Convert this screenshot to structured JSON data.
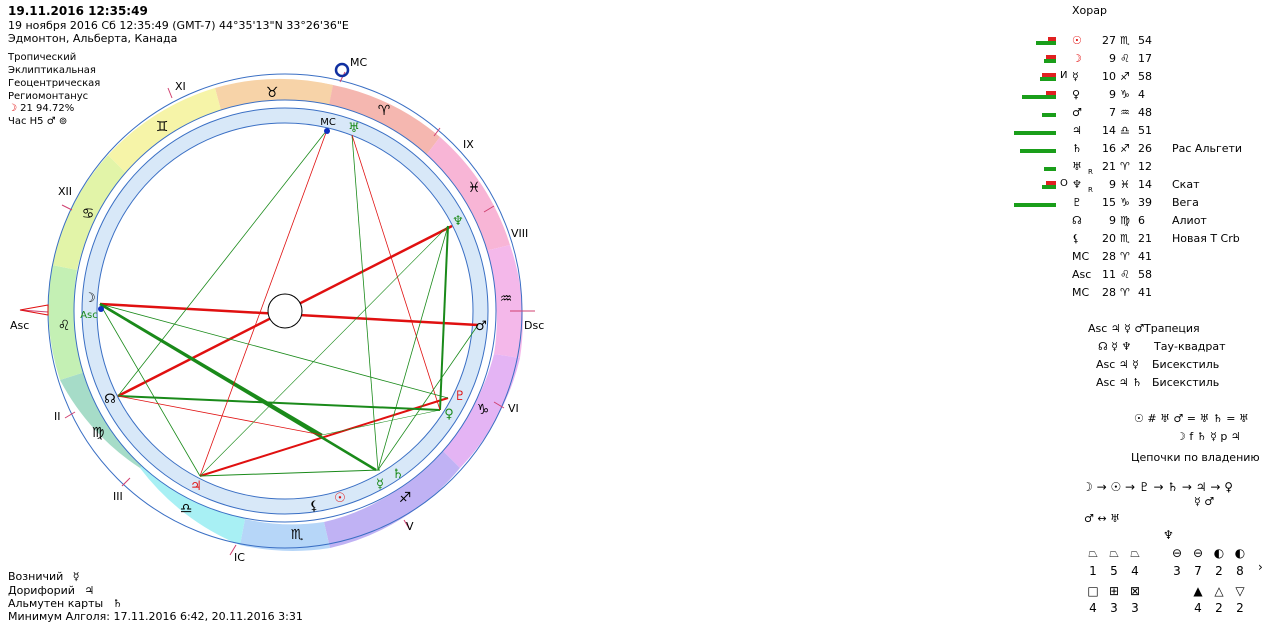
{
  "header": {
    "datetime_bold": "19.11.2016 12:35:49",
    "line2": "19 ноября 2016  Сб  12:35:49 (GMT-7) 44°35'13\"N  33°26'36\"E",
    "line3": "Эдмонтон, Альберта, Канада"
  },
  "settings": {
    "zodiac": "Тропический",
    "coords": "Эклиптикальная",
    "center": "Геоцентрическая",
    "houses": "Региомонтанус",
    "moon_phase_symbol": "☽",
    "moon_phase": "21 94.72%",
    "hour_label": "Час Н5",
    "hour_planet": "♂",
    "hour_extra": "⊚"
  },
  "wheel": {
    "houses": [
      "XI",
      "XII",
      "II",
      "III",
      "V",
      "VI",
      "VIII",
      "IX"
    ],
    "angles": {
      "asc": "Asc",
      "dsc": "Dsc",
      "mc": "MC",
      "ic": "IC"
    },
    "signs": [
      "♉",
      "♈",
      "♓",
      "♒",
      "♑",
      "♐",
      "♏",
      "♎",
      "♍",
      "♌",
      "♋",
      "♊"
    ],
    "planet_labels": {
      "sun": "☉",
      "moon": "☽",
      "mercury": "☿",
      "venus": "♀",
      "mars": "♂",
      "jupiter": "♃",
      "saturn": "♄",
      "uranus": "♅",
      "neptune": "♆",
      "pluto": "♇",
      "node": "☊",
      "lilith": "⚸",
      "mc_inner": "MC",
      "asc_inner": "Asc",
      "retro": "R"
    }
  },
  "horary": {
    "title": "Хорар",
    "rows": [
      {
        "sym": "☉",
        "deg": "27",
        "sign": "♏",
        "min": "54",
        "extra": "",
        "note": "",
        "mark": ""
      },
      {
        "sym": "☽",
        "deg": "9",
        "sign": "♌",
        "min": "17",
        "extra": "",
        "note": "",
        "mark": ""
      },
      {
        "sym": "☿",
        "deg": "10",
        "sign": "♐",
        "min": "58",
        "extra": "",
        "note": "",
        "mark": "И"
      },
      {
        "sym": "♀",
        "deg": "9",
        "sign": "♑",
        "min": "4",
        "extra": "",
        "note": "",
        "mark": ""
      },
      {
        "sym": "♂",
        "deg": "7",
        "sign": "♒",
        "min": "48",
        "extra": "",
        "note": "",
        "mark": ""
      },
      {
        "sym": "♃",
        "deg": "14",
        "sign": "♎",
        "min": "51",
        "extra": "",
        "note": "",
        "mark": ""
      },
      {
        "sym": "♄",
        "deg": "16",
        "sign": "♐",
        "min": "26",
        "extra": "",
        "note": "Рас Альгети",
        "mark": ""
      },
      {
        "sym": "♅",
        "deg": "21",
        "sign": "♈",
        "min": "12",
        "extra": "R",
        "note": "",
        "mark": ""
      },
      {
        "sym": "♆",
        "deg": "9",
        "sign": "♓",
        "min": "14",
        "extra": "R",
        "note": "Скат",
        "mark": "О"
      },
      {
        "sym": "♇",
        "deg": "15",
        "sign": "♑",
        "min": "39",
        "extra": "",
        "note": "Вега",
        "mark": ""
      },
      {
        "sym": "☊",
        "deg": "9",
        "sign": "♍",
        "min": "6",
        "extra": "",
        "note": "Алиот",
        "mark": ""
      },
      {
        "sym": "⚸",
        "deg": "20",
        "sign": "♏",
        "min": "21",
        "extra": "",
        "note": "Новая Т Crb",
        "mark": ""
      },
      {
        "sym": "MC",
        "deg": "28",
        "sign": "♈",
        "min": "41",
        "extra": "",
        "note": "",
        "mark": ""
      },
      {
        "sym": "Asc",
        "deg": "11",
        "sign": "♌",
        "min": "58",
        "extra": "",
        "note": "",
        "mark": ""
      },
      {
        "sym": "MC",
        "deg": "28",
        "sign": "♈",
        "min": "41",
        "extra": "",
        "note": "",
        "mark": ""
      }
    ]
  },
  "configurations": [
    {
      "syms": "Asc ♃ ☿ ♂",
      "name": "Трапеция"
    },
    {
      "syms": "☊ ☿ ♆",
      "name": "Тау-квадрат"
    },
    {
      "syms": "Asc ♃ ☿",
      "name": "Бисекстиль"
    },
    {
      "syms": "Asc ♃ ♄",
      "name": "Бисекстиль"
    }
  ],
  "relations": {
    "line1": "☉ # ♅  ♂ = ♅  ♄ = ♅",
    "line2": "☽ f ♄  ☿ p ♃",
    "chains_title": "Цепочки по владению",
    "chain": "☽ → ☉ → ♇ → ♄ → ♃ → ♀",
    "chain_sub": "☿ ♂",
    "mutual": "♂ ↔ ♅"
  },
  "grid": {
    "neptune_top": "♆",
    "row1_counts": [
      "1",
      "5",
      "4",
      "3",
      "7",
      "2",
      "8"
    ],
    "row2_counts": [
      "4",
      "3",
      "3",
      "4",
      "2",
      "2"
    ],
    "arrow": "›"
  },
  "bottom": {
    "charioteer": "Возничий",
    "charioteer_sym": "☿",
    "doryphory": "Дорифорий",
    "doryphory_sym": "♃",
    "almuten": "Альмутен карты",
    "almuten_sym": "♄",
    "algol": "Минимум Алголя: 17.11.2016  6:42,  20.11.2016  3:31"
  },
  "colors": {
    "red_aspect": "#e01010",
    "green_aspect": "#1a8a1a",
    "wheel_border": "#3a6fc4"
  }
}
